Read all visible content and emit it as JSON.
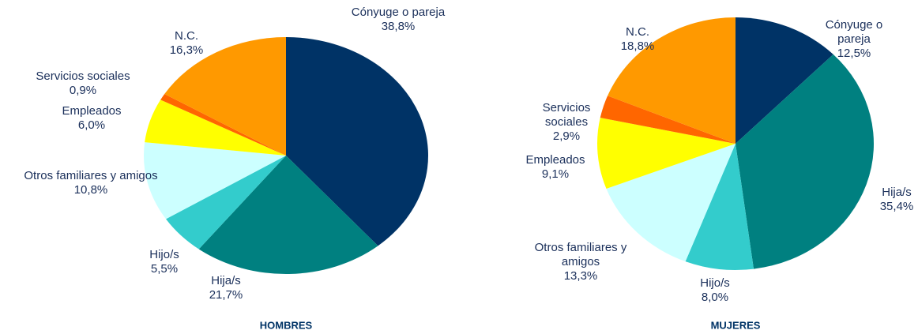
{
  "chart_data": [
    {
      "type": "pie",
      "title": "HOMBRES",
      "categories": [
        "Cónyuge o pareja",
        "Hija/s",
        "Hijo/s",
        "Otros familiares y amigos",
        "Empleados",
        "Servicios sociales",
        "N.C."
      ],
      "values": [
        38.8,
        21.7,
        5.5,
        10.8,
        6.0,
        0.9,
        16.3
      ],
      "value_labels": [
        "38,8%",
        "21,7%",
        "5,5%",
        "10,8%",
        "6,0%",
        "0,9%",
        "16,3%"
      ],
      "colors": [
        "#003366",
        "#008080",
        "#33cccc",
        "#ccffff",
        "#ffff00",
        "#ff6600",
        "#ff9900"
      ]
    },
    {
      "type": "pie",
      "title": "MUJERES",
      "categories": [
        "Cónyuge o pareja",
        "Hija/s",
        "Hijo/s",
        "Otros familiares y amigos",
        "Empleados",
        "Servicios sociales",
        "N.C."
      ],
      "values": [
        12.5,
        35.4,
        8.0,
        13.3,
        9.1,
        2.9,
        18.8
      ],
      "value_labels": [
        "12,5%",
        "35,4%",
        "8,0%",
        "13,3%",
        "9,1%",
        "2,9%",
        "18,8%"
      ],
      "colors": [
        "#003366",
        "#008080",
        "#33cccc",
        "#ccffff",
        "#ffff00",
        "#ff6600",
        "#ff9900"
      ]
    }
  ]
}
